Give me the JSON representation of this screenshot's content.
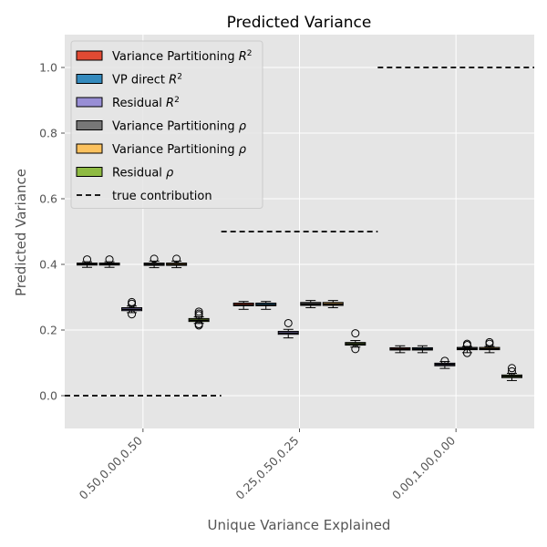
{
  "chart_data": {
    "type": "box",
    "title": "Predicted Variance",
    "xlabel": "Unique Variance Explained",
    "ylabel": "Predicted Variance",
    "ylim": [
      -0.1,
      1.1
    ],
    "yticks": [
      0.0,
      0.2,
      0.4,
      0.6,
      0.8,
      1.0
    ],
    "ytick_labels": [
      "0.0",
      "0.2",
      "0.4",
      "0.6",
      "0.8",
      "1.0"
    ],
    "categories": [
      "0.50,0.00,0.50",
      "0.25,0.50,0.25",
      "0.00,1.00,0.00"
    ],
    "grid": true,
    "legend_position": "upper-left",
    "series": [
      {
        "name": "Variance Partitioning R²",
        "color": "#E24A33",
        "boxes": [
          {
            "q1": 0.398,
            "median": 0.401,
            "q3": 0.404,
            "whislo": 0.391,
            "whishi": 0.408,
            "fliers": [
              0.415
            ]
          },
          {
            "q1": 0.274,
            "median": 0.277,
            "q3": 0.282,
            "whislo": 0.263,
            "whishi": 0.287,
            "fliers": []
          },
          {
            "q1": 0.139,
            "median": 0.142,
            "q3": 0.146,
            "whislo": 0.131,
            "whishi": 0.152,
            "fliers": []
          }
        ]
      },
      {
        "name": "VP direct R²",
        "color": "#348ABD",
        "boxes": [
          {
            "q1": 0.398,
            "median": 0.401,
            "q3": 0.404,
            "whislo": 0.391,
            "whishi": 0.408,
            "fliers": [
              0.415
            ]
          },
          {
            "q1": 0.274,
            "median": 0.277,
            "q3": 0.282,
            "whislo": 0.263,
            "whishi": 0.287,
            "fliers": []
          },
          {
            "q1": 0.139,
            "median": 0.142,
            "q3": 0.146,
            "whislo": 0.131,
            "whishi": 0.152,
            "fliers": []
          }
        ]
      },
      {
        "name": "Residual R²",
        "color": "#988ED5",
        "boxes": [
          {
            "q1": 0.259,
            "median": 0.263,
            "q3": 0.268,
            "whislo": 0.253,
            "whishi": 0.273,
            "fliers": [
              0.285,
              0.28,
              0.248
            ]
          },
          {
            "q1": 0.187,
            "median": 0.191,
            "q3": 0.196,
            "whislo": 0.176,
            "whishi": 0.202,
            "fliers": [
              0.221
            ]
          },
          {
            "q1": 0.091,
            "median": 0.095,
            "q3": 0.099,
            "whislo": 0.083,
            "whishi": 0.104,
            "fliers": [
              0.106
            ]
          }
        ]
      },
      {
        "name": "Variance Partitioning ρ",
        "color": "#777777",
        "boxes": [
          {
            "q1": 0.397,
            "median": 0.4,
            "q3": 0.404,
            "whislo": 0.39,
            "whishi": 0.41,
            "fliers": [
              0.417
            ]
          },
          {
            "q1": 0.275,
            "median": 0.279,
            "q3": 0.284,
            "whislo": 0.268,
            "whishi": 0.29,
            "fliers": []
          },
          {
            "q1": 0.14,
            "median": 0.143,
            "q3": 0.147,
            "whislo": 0.131,
            "whishi": 0.15,
            "fliers": [
              0.158,
              0.154,
              0.13
            ]
          }
        ]
      },
      {
        "name": "Variance Partitioning ρ",
        "color": "#FBC15E",
        "boxes": [
          {
            "q1": 0.397,
            "median": 0.4,
            "q3": 0.404,
            "whislo": 0.39,
            "whishi": 0.41,
            "fliers": [
              0.417
            ]
          },
          {
            "q1": 0.275,
            "median": 0.279,
            "q3": 0.284,
            "whislo": 0.268,
            "whishi": 0.29,
            "fliers": []
          },
          {
            "q1": 0.14,
            "median": 0.143,
            "q3": 0.147,
            "whislo": 0.131,
            "whishi": 0.15,
            "fliers": [
              0.163,
              0.158
            ]
          }
        ]
      },
      {
        "name": "Residual ρ",
        "color": "#8EBA42",
        "boxes": [
          {
            "q1": 0.226,
            "median": 0.23,
            "q3": 0.235,
            "whislo": 0.22,
            "whishi": 0.24,
            "fliers": [
              0.256,
              0.25,
              0.245,
              0.218,
              0.214
            ]
          },
          {
            "q1": 0.154,
            "median": 0.158,
            "q3": 0.162,
            "whislo": 0.148,
            "whishi": 0.168,
            "fliers": [
              0.19,
              0.142
            ]
          },
          {
            "q1": 0.055,
            "median": 0.059,
            "q3": 0.063,
            "whislo": 0.046,
            "whishi": 0.068,
            "fliers": [
              0.084,
              0.074
            ]
          }
        ]
      }
    ],
    "true_contribution": {
      "name": "true contribution",
      "color": "#000000",
      "values": [
        0.0,
        0.5,
        1.0
      ]
    }
  }
}
